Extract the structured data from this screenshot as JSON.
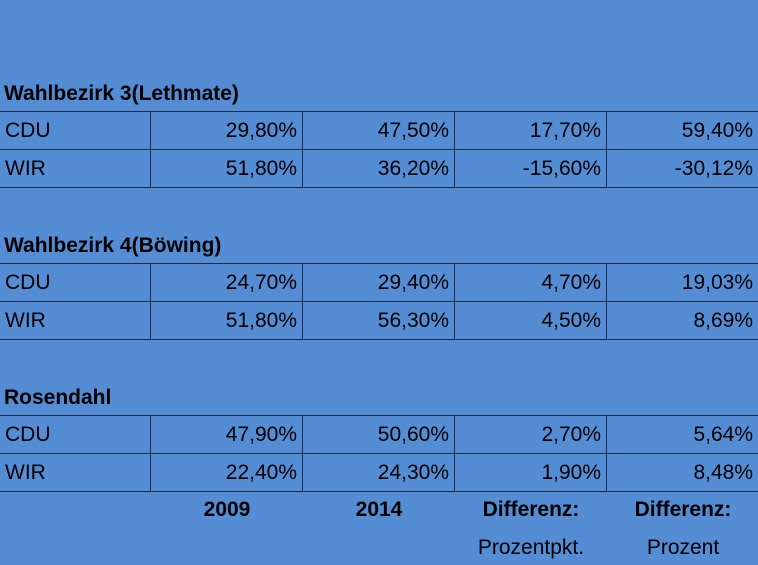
{
  "sections": [
    {
      "title": "Wahlbezirk 3(Lethmate)",
      "rows": [
        [
          "CDU",
          "29,80%",
          "47,50%",
          "17,70%",
          "59,40%"
        ],
        [
          "WIR",
          "51,80%",
          "36,20%",
          "-15,60%",
          "-30,12%"
        ]
      ]
    },
    {
      "title": "Wahlbezirk 4(Böwing)",
      "rows": [
        [
          "CDU",
          "24,70%",
          "29,40%",
          "4,70%",
          "19,03%"
        ],
        [
          "WIR",
          "51,80%",
          "56,30%",
          "4,50%",
          "8,69%"
        ]
      ]
    },
    {
      "title": "Rosendahl",
      "rows": [
        [
          "CDU",
          "47,90%",
          "50,60%",
          "2,70%",
          "5,64%"
        ],
        [
          "WIR",
          "22,40%",
          "24,30%",
          "1,90%",
          "8,48%"
        ]
      ]
    }
  ],
  "footer": {
    "headers": [
      "2009",
      "2014",
      "Differenz:",
      "Differenz:"
    ],
    "subheaders": [
      "Prozentpkt.",
      "Prozent"
    ]
  }
}
